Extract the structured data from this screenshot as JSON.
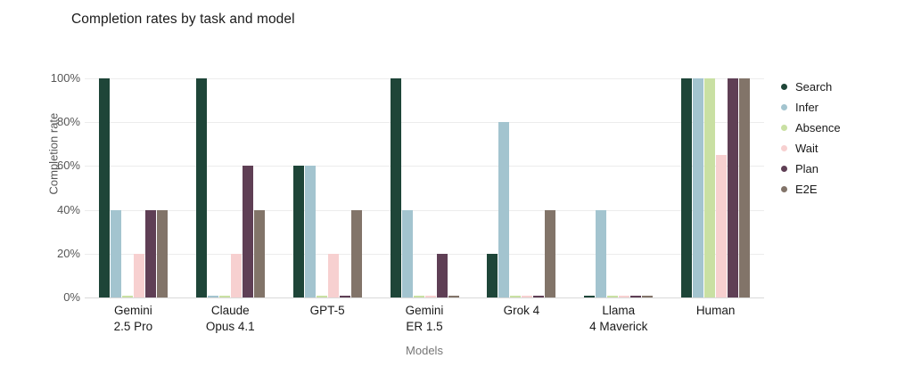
{
  "title": "Completion rates by task and model",
  "chart_data": {
    "type": "bar",
    "grouping": "grouped",
    "title": "Completion rates by task and model",
    "xlabel": "Models",
    "ylabel": "Completion rate",
    "categories": [
      "Gemini\n2.5 Pro",
      "Claude\nOpus 4.1",
      "GPT-5",
      "Gemini\nER 1.5",
      "Grok 4",
      "Llama\n4 Maverick",
      "Human"
    ],
    "series": [
      {
        "name": "Search",
        "color": "#1e4538",
        "values": [
          100,
          100,
          60,
          100,
          20,
          1,
          100
        ]
      },
      {
        "name": "Infer",
        "color": "#a3c4cf",
        "values": [
          40,
          1,
          60,
          40,
          80,
          40,
          100
        ]
      },
      {
        "name": "Absence",
        "color": "#c9e0a3",
        "values": [
          1,
          1,
          1,
          1,
          1,
          1,
          100
        ]
      },
      {
        "name": "Wait",
        "color": "#f7d0d0",
        "values": [
          20,
          20,
          20,
          1,
          1,
          1,
          65
        ]
      },
      {
        "name": "Plan",
        "color": "#5f3f55",
        "values": [
          40,
          60,
          1,
          20,
          1,
          1,
          100
        ]
      },
      {
        "name": "E2E",
        "color": "#827469",
        "values": [
          40,
          40,
          40,
          1,
          40,
          1,
          100
        ]
      }
    ],
    "ylim": [
      0,
      100
    ],
    "yticks": [
      0,
      20,
      40,
      60,
      80,
      100
    ],
    "ytick_labels": [
      "0%",
      "20%",
      "40%",
      "60%",
      "80%",
      "100%"
    ],
    "grid": true,
    "gridline_color": "#ececec",
    "background_color": "#ffffff",
    "legend_position": "right",
    "unit": "%"
  }
}
